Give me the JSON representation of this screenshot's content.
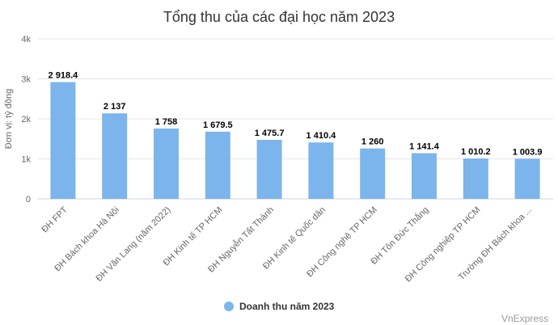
{
  "chart_data": {
    "type": "bar",
    "title": "Tổng thu của các đại học năm 2023",
    "ylabel": "Đơn vị: tỷ đồng",
    "xlabel": "",
    "ylim": [
      0,
      4000
    ],
    "yticks": [
      0,
      1000,
      2000,
      3000,
      4000
    ],
    "ytick_labels": [
      "0",
      "1k",
      "2k",
      "3k",
      "4k"
    ],
    "categories": [
      "ĐH FPT",
      "ĐH Bách khoa Hà Nội",
      "ĐH Văn Lang (năm 2022)",
      "ĐH Kinh tế TP HCM",
      "ĐH Nguyễn Tất Thành",
      "ĐH Kinh tế Quốc dân",
      "ĐH Công nghệ TP HCM",
      "ĐH Tôn Đức Thắng",
      "ĐH Công nghiệp TP HCM",
      "Trường ĐH Bách khoa ..."
    ],
    "series": [
      {
        "name": "Doanh thu năm 2023",
        "color": "#7cb5ec",
        "values": [
          2918.4,
          2137,
          1758,
          1679.5,
          1475.7,
          1410.4,
          1260,
          1141.4,
          1010.2,
          1003.9
        ],
        "labels": [
          "2 918.4",
          "2 137",
          "1 758",
          "1 679.5",
          "1 475.7",
          "1 410.4",
          "1 260",
          "1 141.4",
          "1 010.2",
          "1 003.9"
        ]
      }
    ],
    "grid": true,
    "legend": "bottom-center"
  },
  "credit": "VnExpress"
}
